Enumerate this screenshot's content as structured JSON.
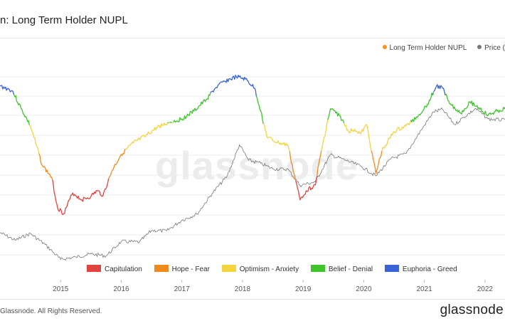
{
  "title": "n: Long Term Holder NUPL",
  "watermark": "glassnode",
  "footer": {
    "copyright": "Glassnode. All Rights Reserved.",
    "brand": "glassnode"
  },
  "legend_top": [
    {
      "label": "Long Term Holder NUPL",
      "color": "#f7931a"
    },
    {
      "label": "Price (",
      "color": "#777777"
    }
  ],
  "zone_legend": [
    {
      "label": "Capitulation",
      "color": "#e0443e"
    },
    {
      "label": "Hope - Fear",
      "color": "#f08a1c"
    },
    {
      "label": "Optimism - Anxiety",
      "color": "#f3d43f"
    },
    {
      "label": "Belief - Denial",
      "color": "#3fc42c"
    },
    {
      "label": "Euphoria - Greed",
      "color": "#3a63d8"
    }
  ],
  "chart_data": {
    "type": "line",
    "x_ticks": [
      "2015",
      "2016",
      "2017",
      "2018",
      "2019",
      "2020",
      "2021",
      "2022"
    ],
    "grid": true,
    "series": [
      {
        "name": "Long Term Holder NUPL",
        "color_by_zone": true,
        "points": [
          [
            "2014.00",
            0.82
          ],
          [
            "2014.20",
            0.78
          ],
          [
            "2014.35",
            0.62
          ],
          [
            "2014.50",
            0.47
          ],
          [
            "2014.60",
            0.3
          ],
          [
            "2014.70",
            0.12
          ],
          [
            "2014.85",
            0.02
          ],
          [
            "2014.95",
            -0.25
          ],
          [
            "2015.05",
            -0.3
          ],
          [
            "2015.20",
            -0.12
          ],
          [
            "2015.35",
            -0.18
          ],
          [
            "2015.50",
            -0.15
          ],
          [
            "2015.60",
            -0.1
          ],
          [
            "2015.70",
            -0.14
          ],
          [
            "2015.85",
            0.08
          ],
          [
            "2016.00",
            0.22
          ],
          [
            "2016.20",
            0.32
          ],
          [
            "2016.40",
            0.38
          ],
          [
            "2016.60",
            0.46
          ],
          [
            "2016.80",
            0.5
          ],
          [
            "2017.00",
            0.53
          ],
          [
            "2017.20",
            0.6
          ],
          [
            "2017.40",
            0.7
          ],
          [
            "2017.55",
            0.8
          ],
          [
            "2017.70",
            0.86
          ],
          [
            "2017.90",
            0.9
          ],
          [
            "2018.05",
            0.88
          ],
          [
            "2018.20",
            0.8
          ],
          [
            "2018.30",
            0.6
          ],
          [
            "2018.40",
            0.38
          ],
          [
            "2018.50",
            0.34
          ],
          [
            "2018.60",
            0.32
          ],
          [
            "2018.75",
            0.3
          ],
          [
            "2018.85",
            0.05
          ],
          [
            "2018.95",
            -0.18
          ],
          [
            "2019.05",
            -0.1
          ],
          [
            "2019.20",
            -0.05
          ],
          [
            "2019.30",
            0.25
          ],
          [
            "2019.45",
            0.62
          ],
          [
            "2019.60",
            0.56
          ],
          [
            "2019.75",
            0.42
          ],
          [
            "2019.85",
            0.44
          ],
          [
            "2019.95",
            0.4
          ],
          [
            "2020.05",
            0.48
          ],
          [
            "2020.20",
            0.05
          ],
          [
            "2020.30",
            0.25
          ],
          [
            "2020.50",
            0.42
          ],
          [
            "2020.70",
            0.47
          ],
          [
            "2020.90",
            0.56
          ],
          [
            "2021.05",
            0.66
          ],
          [
            "2021.20",
            0.82
          ],
          [
            "2021.30",
            0.8
          ],
          [
            "2021.45",
            0.65
          ],
          [
            "2021.60",
            0.58
          ],
          [
            "2021.75",
            0.68
          ],
          [
            "2021.90",
            0.63
          ],
          [
            "2022.05",
            0.56
          ],
          [
            "2022.20",
            0.6
          ],
          [
            "2022.35",
            0.62
          ]
        ]
      },
      {
        "name": "Price (",
        "color": "#777777",
        "points": [
          [
            "2014.00",
            600
          ],
          [
            "2014.25",
            450
          ],
          [
            "2014.50",
            580
          ],
          [
            "2014.75",
            380
          ],
          [
            "2015.00",
            220
          ],
          [
            "2015.25",
            240
          ],
          [
            "2015.50",
            270
          ],
          [
            "2015.75",
            250
          ],
          [
            "2016.00",
            430
          ],
          [
            "2016.30",
            420
          ],
          [
            "2016.50",
            650
          ],
          [
            "2016.75",
            640
          ],
          [
            "2017.00",
            950
          ],
          [
            "2017.25",
            1200
          ],
          [
            "2017.50",
            2600
          ],
          [
            "2017.75",
            5000
          ],
          [
            "2017.95",
            16000
          ],
          [
            "2018.10",
            9000
          ],
          [
            "2018.30",
            8000
          ],
          [
            "2018.50",
            6500
          ],
          [
            "2018.75",
            6400
          ],
          [
            "2018.95",
            3500
          ],
          [
            "2019.20",
            4000
          ],
          [
            "2019.45",
            11000
          ],
          [
            "2019.70",
            9000
          ],
          [
            "2019.95",
            7200
          ],
          [
            "2020.20",
            5000
          ],
          [
            "2020.45",
            9500
          ],
          [
            "2020.70",
            11500
          ],
          [
            "2020.95",
            28000
          ],
          [
            "2021.15",
            55000
          ],
          [
            "2021.30",
            60000
          ],
          [
            "2021.50",
            34000
          ],
          [
            "2021.65",
            45000
          ],
          [
            "2021.85",
            62000
          ],
          [
            "2022.05",
            42000
          ],
          [
            "2022.35",
            40000
          ]
        ]
      }
    ]
  }
}
